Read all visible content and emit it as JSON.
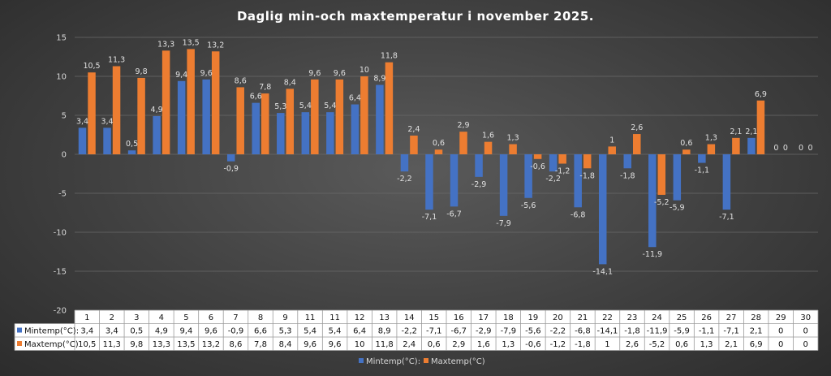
{
  "chart_data": {
    "type": "bar",
    "title": "Daglig min-och maxtemperatur i november 2025.",
    "categories": [
      "1",
      "2",
      "3",
      "4",
      "5",
      "6",
      "7",
      "8",
      "9",
      "11",
      "11",
      "12",
      "13",
      "14",
      "15",
      "16",
      "17",
      "18",
      "19",
      "20",
      "21",
      "22",
      "23",
      "24",
      "25",
      "26",
      "27",
      "28",
      "29",
      "30"
    ],
    "series": [
      {
        "name": "Mintemp(°C):",
        "color": "#4472c4",
        "values": [
          3.4,
          3.4,
          0.5,
          4.9,
          9.4,
          9.6,
          -0.9,
          6.6,
          5.3,
          5.4,
          5.4,
          6.4,
          8.9,
          -2.2,
          -7.1,
          -6.7,
          -2.9,
          -7.9,
          -5.6,
          -2.2,
          -6.8,
          -14.1,
          -1.8,
          -11.9,
          -5.9,
          -1.1,
          -7.1,
          2.1,
          0,
          0
        ],
        "labels": [
          "3,4",
          "3,4",
          "0,5",
          "4,9",
          "9,4",
          "9,6",
          "-0,9",
          "6,6",
          "5,3",
          "5,4",
          "5,4",
          "6,4",
          "8,9",
          "-2,2",
          "-7,1",
          "-6,7",
          "-2,9",
          "-7,9",
          "-5,6",
          "-2,2",
          "-6,8",
          "-14,1",
          "-1,8",
          "-11,9",
          "-5,9",
          "-1,1",
          "-7,1",
          "2,1",
          "0",
          "0"
        ]
      },
      {
        "name": "Maxtemp(°C)",
        "color": "#ed7d31",
        "values": [
          10.5,
          11.3,
          9.8,
          13.3,
          13.5,
          13.2,
          8.6,
          7.8,
          8.4,
          9.6,
          9.6,
          10,
          11.8,
          2.4,
          0.6,
          2.9,
          1.6,
          1.3,
          -0.6,
          -1.2,
          -1.8,
          1,
          2.6,
          -5.2,
          0.6,
          1.3,
          2.1,
          6.9,
          0,
          0
        ],
        "labels": [
          "10,5",
          "11,3",
          "9,8",
          "13,3",
          "13,5",
          "13,2",
          "8,6",
          "7,8",
          "8,4",
          "9,6",
          "9,6",
          "10",
          "11,8",
          "2,4",
          "0,6",
          "2,9",
          "1,6",
          "1,3",
          "-0,6",
          "-1,2",
          "-1,8",
          "1",
          "2,6",
          "-5,2",
          "0,6",
          "1,3",
          "2,1",
          "6,9",
          "0",
          "0"
        ]
      }
    ],
    "ylim": [
      -20,
      15
    ],
    "yticks": [
      "15",
      "10",
      "5",
      "0",
      "-5",
      "-10",
      "-15",
      "-20"
    ],
    "ytick_values": [
      15,
      10,
      5,
      0,
      -5,
      -10,
      -15,
      -20
    ],
    "grid": true,
    "legend": "bottom",
    "data_table": true
  }
}
